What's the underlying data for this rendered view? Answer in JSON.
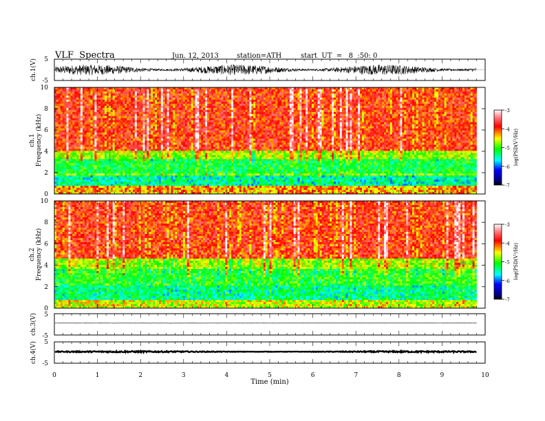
{
  "header": {
    "title": "VLF  Spectra",
    "date": "Jun. 12, 2013",
    "station": "station=ATH",
    "start": "start  UT  =   8  :50: 0"
  },
  "chart_data": [
    {
      "type": "line",
      "panel": "ch1-waveform",
      "ylabel": "ch.1(V)",
      "ylim": [
        -5,
        5
      ],
      "y_ticks": [
        "5",
        "-5"
      ],
      "note": "dense noisy waveform, amplitude roughly ±2.5 V",
      "amplitude": 2.5
    },
    {
      "type": "heatmap",
      "panel": "ch1-spectrogram",
      "ylabel_lines": [
        "ch.1",
        "Frequency  (kHz)"
      ],
      "ylim": [
        0,
        10
      ],
      "y_ticks": [
        "0",
        "2",
        "4",
        "6",
        "8",
        "10"
      ],
      "bands_khz": [
        {
          "from": 0,
          "to": 0.8,
          "level": -4.3
        },
        {
          "from": 0.8,
          "to": 1.8,
          "level": -5.5
        },
        {
          "from": 1.8,
          "to": 2.0,
          "level": -4.8
        },
        {
          "from": 2.0,
          "to": 3.3,
          "level": -5.2
        },
        {
          "from": 3.3,
          "to": 4.0,
          "level": -4.7
        },
        {
          "from": 4.0,
          "to": 10,
          "level": -3.9
        }
      ],
      "colorbar": {
        "label": "log(PSD(V²/Hz)",
        "ticks": [
          "-3",
          "-4",
          "-5",
          "-6",
          "-7"
        ],
        "range": [
          -7,
          -3
        ]
      }
    },
    {
      "type": "heatmap",
      "panel": "ch2-spectrogram",
      "ylabel_lines": [
        "ch.2",
        "Frequency  (kHz)"
      ],
      "ylim": [
        0,
        10
      ],
      "y_ticks": [
        "0",
        "2",
        "4",
        "6",
        "8",
        "10"
      ],
      "bands_khz": [
        {
          "from": 0,
          "to": 0.7,
          "level": -4.6
        },
        {
          "from": 0.7,
          "to": 2.2,
          "level": -5.4
        },
        {
          "from": 2.2,
          "to": 3.6,
          "level": -5.1
        },
        {
          "from": 3.6,
          "to": 4.6,
          "level": -4.7
        },
        {
          "from": 4.6,
          "to": 10,
          "level": -3.9
        }
      ],
      "colorbar": {
        "label": "log(PSD(V²/Hz)",
        "ticks": [
          "-3",
          "-4",
          "-5",
          "-6",
          "-7"
        ],
        "range": [
          -7,
          -3
        ]
      }
    },
    {
      "type": "line",
      "panel": "ch3-waveform",
      "ylabel": "ch.3(V)",
      "ylim": [
        -5,
        5
      ],
      "y_ticks": [
        "5",
        "-5"
      ],
      "note": "nearly flat trace slightly above zero",
      "level": 0.6,
      "amplitude": 0.1
    },
    {
      "type": "line",
      "panel": "ch4-waveform",
      "ylabel": "ch.4(V)",
      "ylim": [
        -5,
        5
      ],
      "y_ticks": [
        "5",
        "-5"
      ],
      "note": "thick flat trace slightly above zero",
      "level": 0.4,
      "amplitude": 0.35
    }
  ],
  "x_axis": {
    "label": "Time  (min)",
    "ticks": [
      "0",
      "1",
      "2",
      "3",
      "4",
      "5",
      "6",
      "7",
      "8",
      "9",
      "10"
    ],
    "range": [
      0,
      10
    ],
    "data_end": 9.8
  },
  "colors": {
    "palette": [
      "#000000",
      "#0000ff",
      "#00ffff",
      "#00ff00",
      "#ffff00",
      "#ff0000",
      "#ffffff"
    ]
  }
}
